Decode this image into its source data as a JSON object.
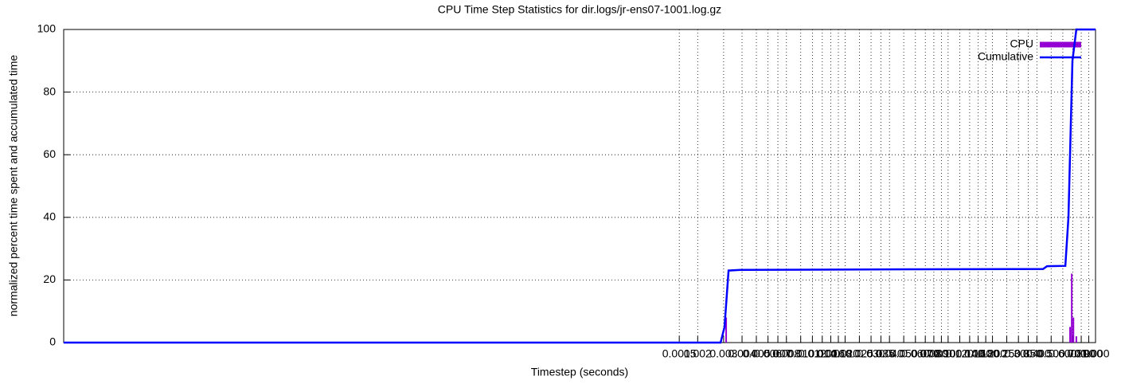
{
  "chart_data": {
    "type": "line",
    "title": "CPU Time Step Statistics for dir.logs/jr-ens07-1001.log.gz",
    "x_label": "Timestep (seconds)",
    "y_label": "normalized percent time spent and accumulated time",
    "log_x": true,
    "grid": true,
    "legend": "top-right",
    "xlim": [
      1e-07,
      1
    ],
    "xticks": [
      {
        "value": 0.0015,
        "label": "0.0015"
      },
      {
        "value": 0.002,
        "label": "0.002"
      },
      {
        "value": 0.003,
        "label": "0.003"
      },
      {
        "value": 0.004,
        "label": "0.004"
      },
      {
        "value": 0.005,
        "label": "0.005"
      },
      {
        "value": 0.006,
        "label": "0.006"
      },
      {
        "value": 0.007,
        "label": "0.007"
      },
      {
        "value": 0.008,
        "label": "0.008"
      },
      {
        "value": 0.01,
        "label": "0.010"
      },
      {
        "value": 0.012,
        "label": "0.012"
      },
      {
        "value": 0.014,
        "label": "0.014"
      },
      {
        "value": 0.016,
        "label": "0.016"
      },
      {
        "value": 0.018,
        "label": "0.018"
      },
      {
        "value": 0.02,
        "label": "0.020"
      },
      {
        "value": 0.025,
        "label": "0.025"
      },
      {
        "value": 0.03,
        "label": "0.030"
      },
      {
        "value": 0.035,
        "label": "0.035"
      },
      {
        "value": 0.04,
        "label": "0.040"
      },
      {
        "value": 0.05,
        "label": "0.050"
      },
      {
        "value": 0.06,
        "label": "0.060"
      },
      {
        "value": 0.07,
        "label": "0.070"
      },
      {
        "value": 0.08,
        "label": "0.080"
      },
      {
        "value": 0.09,
        "label": "0.090"
      },
      {
        "value": 0.1,
        "label": "0.100"
      },
      {
        "value": 0.12,
        "label": "0.120"
      },
      {
        "value": 0.14,
        "label": "0.140"
      },
      {
        "value": 0.16,
        "label": "0.160"
      },
      {
        "value": 0.18,
        "label": "0.180"
      },
      {
        "value": 0.2,
        "label": "0.200"
      },
      {
        "value": 0.25,
        "label": "0.250"
      },
      {
        "value": 0.3,
        "label": "0.300"
      },
      {
        "value": 0.35,
        "label": "0.350"
      },
      {
        "value": 0.4,
        "label": "0.400"
      },
      {
        "value": 0.5,
        "label": "0.500"
      },
      {
        "value": 0.6,
        "label": "0.600"
      },
      {
        "value": 0.7,
        "label": "0.700"
      },
      {
        "value": 0.8,
        "label": "0.800"
      },
      {
        "value": 0.9,
        "label": "0.900"
      },
      {
        "value": 1,
        "label": "1.000"
      }
    ],
    "ylim": [
      0,
      100
    ],
    "yticks": [
      0,
      20,
      40,
      60,
      80,
      100
    ],
    "series": [
      {
        "name": "CPU",
        "color": "#9400d3",
        "style": "impulses",
        "x": [
          0.00312,
          0.672,
          0.69,
          0.708,
          0.741
        ],
        "values": [
          8,
          5,
          22,
          8,
          2
        ]
      },
      {
        "name": "Cumulative",
        "color": "#0000ff",
        "style": "lines",
        "x": [
          1e-07,
          0.00286,
          0.00304,
          0.00324,
          0.0039,
          0.0602,
          0.441,
          0.469,
          0.624,
          0.655,
          0.697,
          0.741,
          1
        ],
        "values": [
          0,
          0,
          5,
          23,
          23.2,
          23.4,
          23.5,
          24.4,
          24.5,
          40,
          90,
          100,
          100
        ]
      }
    ]
  }
}
